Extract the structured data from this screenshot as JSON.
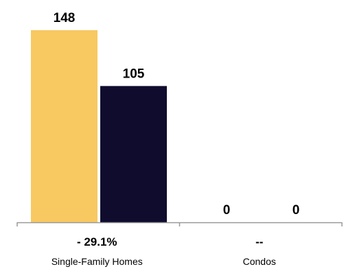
{
  "chart_data": {
    "type": "bar",
    "categories": [
      "Single-Family Homes",
      "Condos"
    ],
    "category_changes": [
      "- 29.1%",
      "--"
    ],
    "series": [
      {
        "values": [
          148,
          0
        ],
        "color": "#f8c861"
      },
      {
        "values": [
          105,
          0
        ],
        "color": "#0f0c2e"
      }
    ],
    "value_labels": [
      [
        "148",
        "0"
      ],
      [
        "105",
        "0"
      ]
    ],
    "ylim": [
      0,
      148
    ],
    "axis_color": "#999999",
    "grid": false,
    "legend": "none"
  }
}
